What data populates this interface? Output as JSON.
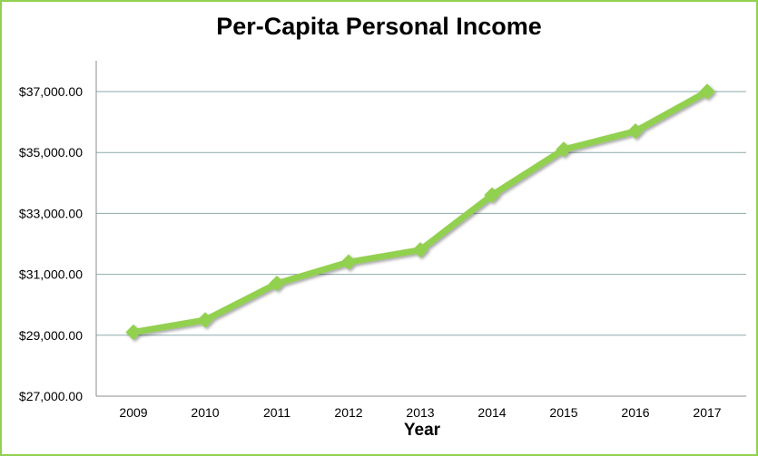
{
  "chart_data": {
    "type": "line",
    "title": "Per-Capita Personal Income",
    "xlabel": "Year",
    "ylabel": "",
    "categories": [
      "2009",
      "2010",
      "2011",
      "2012",
      "2013",
      "2014",
      "2015",
      "2016",
      "2017"
    ],
    "series": [
      {
        "values": [
          29100,
          29500,
          30700,
          31400,
          31800,
          33600,
          35100,
          35700,
          37000
        ]
      }
    ],
    "ylim": [
      27000,
      38000
    ],
    "yticks": [
      27000,
      29000,
      31000,
      33000,
      35000,
      37000
    ],
    "ytick_labels": [
      "$27,000.00",
      "$29,000.00",
      "$31,000.00",
      "$33,000.00",
      "$35,000.00",
      "$37,000.00"
    ],
    "grid": true,
    "legend": "none",
    "colors": {
      "line": "#92d050",
      "marker": "#92d050",
      "grid": "#8ea9a9",
      "border": "#92d050"
    }
  }
}
